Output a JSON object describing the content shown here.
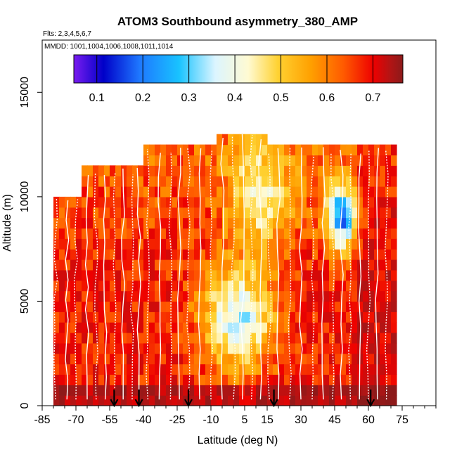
{
  "chart_data": {
    "type": "heatmap",
    "title": "ATOM3 Southbound asymmetry_380_AMP",
    "flights_text": "Flts: 2,3,4,5,6,7",
    "dates_text": "MMDD: 1001,1004,1006,1008,1011,1014",
    "xlabel": "Latitude (deg N)",
    "ylabel": "Altitude (m)",
    "xlim": [
      -85,
      90
    ],
    "ylim": [
      0,
      17500
    ],
    "x_ticks": [
      -85,
      -70,
      -55,
      -40,
      -25,
      -10,
      5,
      15,
      30,
      45,
      60,
      75
    ],
    "x_tick_labels": [
      "-85",
      "-70",
      "-55",
      "-40",
      "-25",
      "-10",
      "5",
      "15",
      "30",
      "45",
      "60",
      "75"
    ],
    "y_ticks": [
      0,
      5000,
      10000,
      15000
    ],
    "y_tick_labels": [
      "0",
      "5000",
      "10000",
      "15000"
    ],
    "colorbar": {
      "range": [
        0.05,
        0.765
      ],
      "ticks": [
        0.1,
        0.2,
        0.3,
        0.4,
        0.5,
        0.6,
        0.7
      ],
      "tick_labels": [
        "0.1",
        "0.2",
        "0.3",
        "0.4",
        "0.5",
        "0.6",
        "0.7"
      ],
      "colors": [
        "#7a1cf0",
        "#0000c8",
        "#1e78ff",
        "#19c3ff",
        "#dcf5ff",
        "#fffad2",
        "#ffd232",
        "#ffa000",
        "#ff5a00",
        "#ee0000",
        "#b41414",
        "#8b1a1a"
      ]
    },
    "profile_arrows_latitude": [
      -53,
      -42,
      -20,
      18,
      61
    ],
    "grid": false,
    "legend": "none"
  }
}
